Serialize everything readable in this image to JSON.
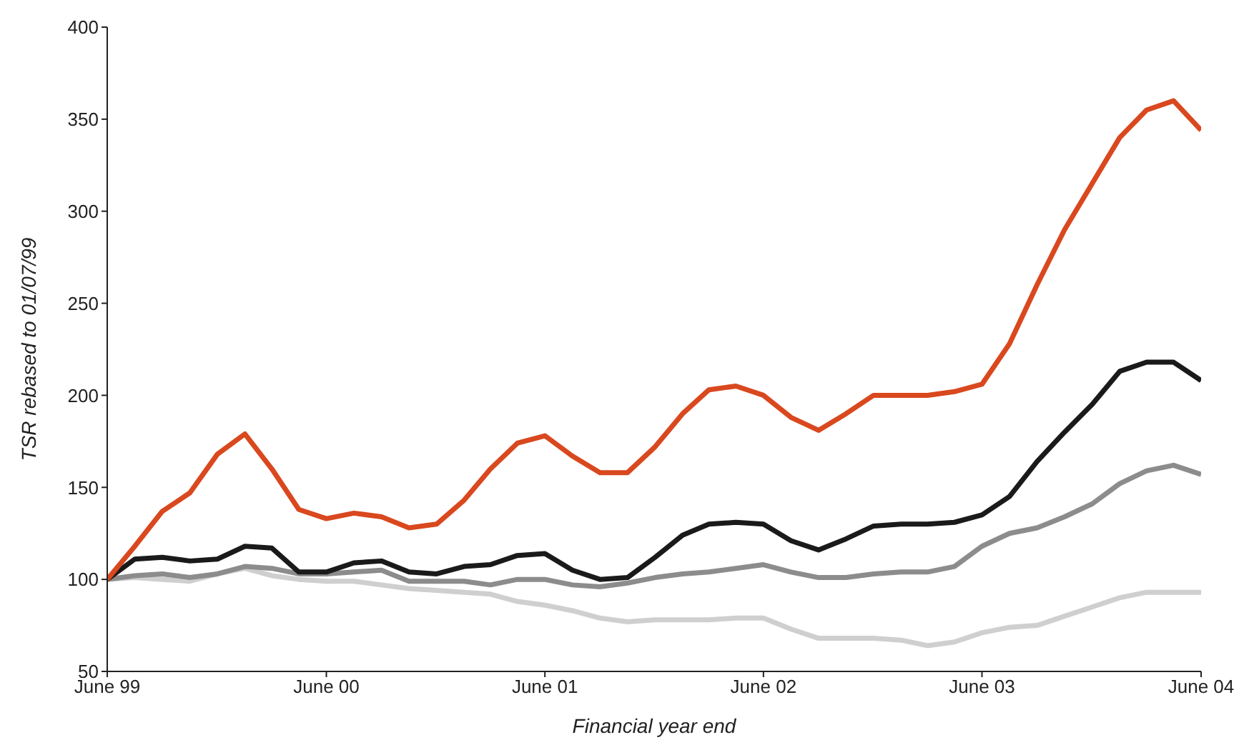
{
  "chart_data": {
    "type": "line",
    "xlabel": "Financial year end",
    "ylabel": "TSR rebased to 01/07/99",
    "x": [
      "1999-06-30",
      "1999-08-15",
      "1999-09-30",
      "1999-11-15",
      "1999-12-31",
      "2000-02-15",
      "2000-03-31",
      "2000-05-15",
      "2000-06-30",
      "2000-08-15",
      "2000-09-30",
      "2000-11-15",
      "2000-12-31",
      "2001-02-15",
      "2001-03-31",
      "2001-05-15",
      "2001-06-30",
      "2001-08-15",
      "2001-09-30",
      "2001-11-15",
      "2001-12-31",
      "2002-02-15",
      "2002-03-31",
      "2002-05-15",
      "2002-06-30",
      "2002-08-15",
      "2002-09-30",
      "2002-11-15",
      "2002-12-31",
      "2003-02-15",
      "2003-03-31",
      "2003-05-15",
      "2003-06-30",
      "2003-08-15",
      "2003-09-30",
      "2003-11-15",
      "2003-12-31",
      "2004-02-15",
      "2004-03-31",
      "2004-05-15",
      "2004-06-30"
    ],
    "series": [
      {
        "color": "#d9481e",
        "values": [
          100,
          118,
          137,
          147,
          168,
          179,
          160,
          138,
          133,
          136,
          134,
          128,
          130,
          143,
          160,
          174,
          178,
          167,
          158,
          158,
          172,
          190,
          203,
          205,
          200,
          188,
          181,
          190,
          200,
          200,
          200,
          202,
          206,
          228,
          260,
          290,
          315,
          340,
          355,
          360,
          344
        ]
      },
      {
        "color": "#1a1a1a",
        "values": [
          100,
          111,
          112,
          110,
          111,
          118,
          117,
          104,
          104,
          109,
          110,
          104,
          103,
          107,
          108,
          113,
          114,
          105,
          100,
          101,
          112,
          124,
          130,
          131,
          130,
          121,
          116,
          122,
          129,
          130,
          130,
          131,
          135,
          145,
          164,
          180,
          195,
          213,
          218,
          218,
          208
        ]
      },
      {
        "color": "#8c8c8c",
        "values": [
          100,
          102,
          103,
          101,
          103,
          107,
          106,
          103,
          103,
          104,
          105,
          99,
          99,
          99,
          97,
          100,
          100,
          97,
          96,
          98,
          101,
          103,
          104,
          106,
          108,
          104,
          101,
          101,
          103,
          104,
          104,
          107,
          118,
          125,
          128,
          134,
          141,
          152,
          159,
          162,
          157
        ]
      },
      {
        "color": "#cfcfcf",
        "values": [
          100,
          101,
          100,
          99,
          103,
          106,
          102,
          100,
          99,
          99,
          97,
          95,
          94,
          93,
          92,
          88,
          86,
          83,
          79,
          77,
          78,
          78,
          78,
          79,
          79,
          73,
          68,
          68,
          68,
          67,
          64,
          66,
          71,
          74,
          75,
          80,
          85,
          90,
          93,
          93,
          93
        ]
      }
    ],
    "xlim": [
      "1999-06-30",
      "2004-06-30"
    ],
    "xticks": [
      {
        "value": "1999-06-30",
        "label": "June 99"
      },
      {
        "value": "2000-06-30",
        "label": "June 00"
      },
      {
        "value": "2001-06-30",
        "label": "June 01"
      },
      {
        "value": "2002-06-30",
        "label": "June 02"
      },
      {
        "value": "2003-06-30",
        "label": "June 03"
      },
      {
        "value": "2004-06-30",
        "label": "June 04"
      }
    ],
    "ylim": [
      50,
      400
    ],
    "yticks": [
      50,
      100,
      150,
      200,
      250,
      300,
      350,
      400
    ],
    "grid": false,
    "legend": false,
    "marker": "none",
    "line_style": "solid"
  }
}
